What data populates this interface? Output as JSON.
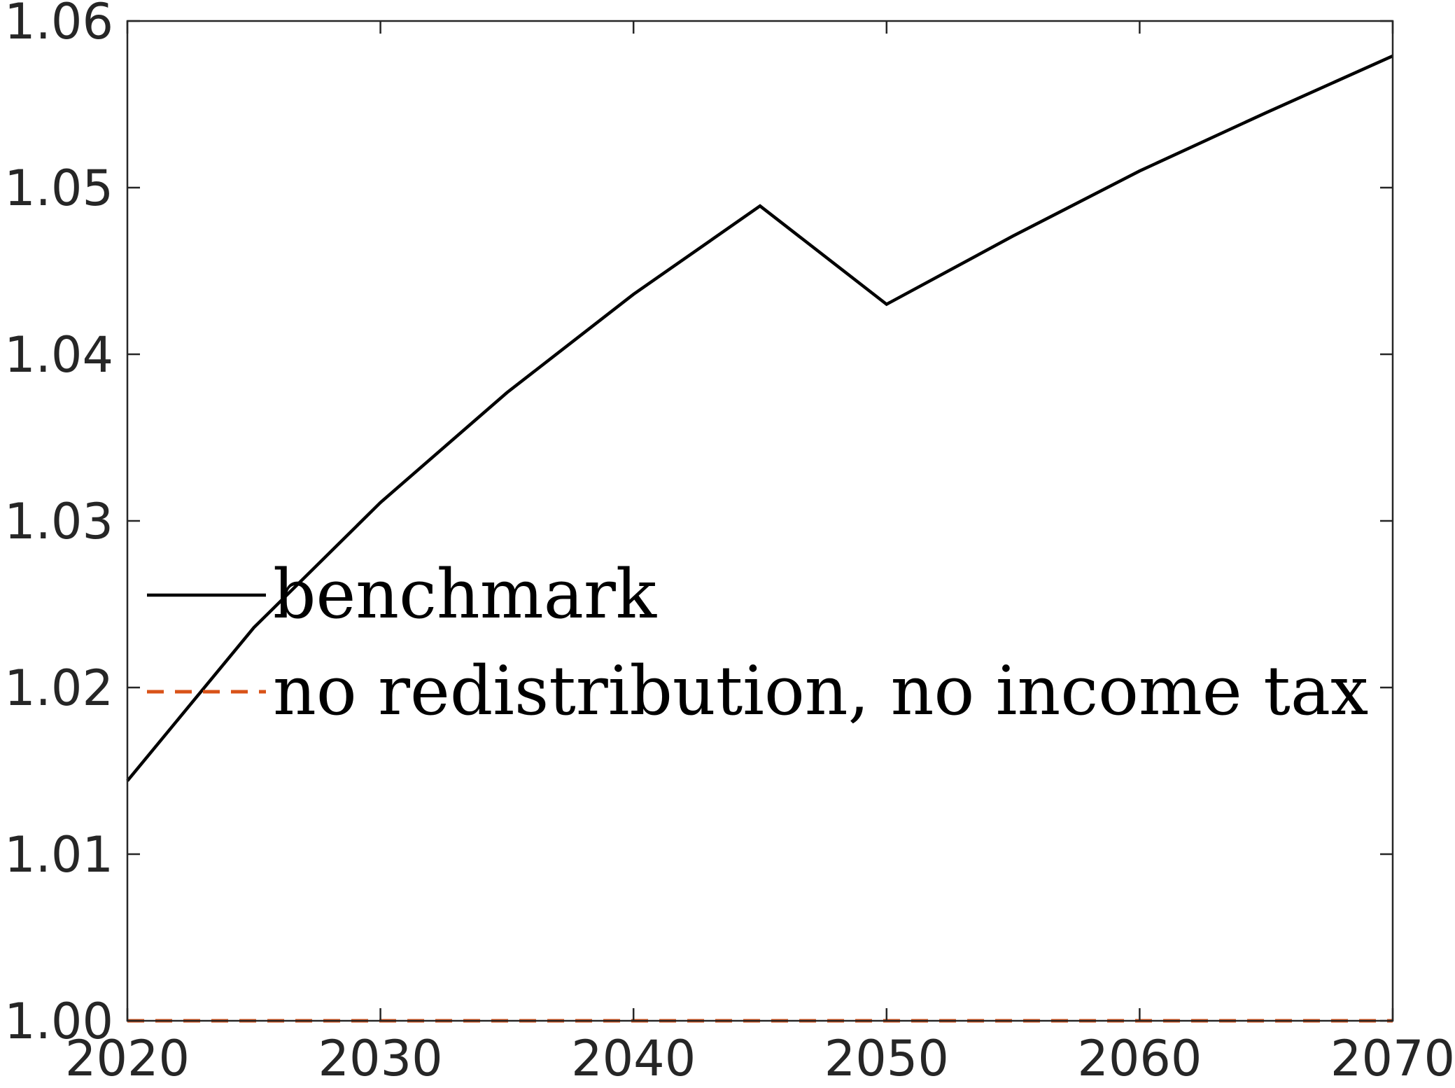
{
  "chart_data": {
    "type": "line",
    "title": "",
    "xlabel": "",
    "ylabel": "",
    "xlim": [
      2020,
      2070
    ],
    "ylim": [
      1.0,
      1.06
    ],
    "x_ticks": [
      2020,
      2030,
      2040,
      2050,
      2060,
      2070
    ],
    "x_tick_labels": [
      "2020",
      "2030",
      "2040",
      "2050",
      "2060",
      "2070"
    ],
    "y_ticks": [
      1.0,
      1.01,
      1.02,
      1.03,
      1.04,
      1.05,
      1.06
    ],
    "y_tick_labels": [
      "1.00",
      "1.01",
      "1.02",
      "1.03",
      "1.04",
      "1.05",
      "1.06"
    ],
    "grid": false,
    "legend_position": "middle-left",
    "series": [
      {
        "name": "benchmark",
        "color": "#000000",
        "line_style": "solid",
        "x": [
          2020,
          2025,
          2030,
          2035,
          2040,
          2045,
          2050,
          2055,
          2060,
          2065,
          2070
        ],
        "y": [
          1.0144,
          1.0236,
          1.0311,
          1.0377,
          1.0436,
          1.0489,
          1.043,
          1.0471,
          1.051,
          1.0545,
          1.0579
        ]
      },
      {
        "name": "no redistribution, no income tax",
        "color": "#D95319",
        "line_style": "dashed",
        "x": [
          2020,
          2025,
          2030,
          2035,
          2040,
          2045,
          2050,
          2055,
          2060,
          2065,
          2070
        ],
        "y": [
          1.0,
          1.0,
          1.0,
          1.0,
          1.0,
          1.0,
          1.0,
          1.0,
          1.0,
          1.0,
          1.0
        ]
      }
    ]
  }
}
